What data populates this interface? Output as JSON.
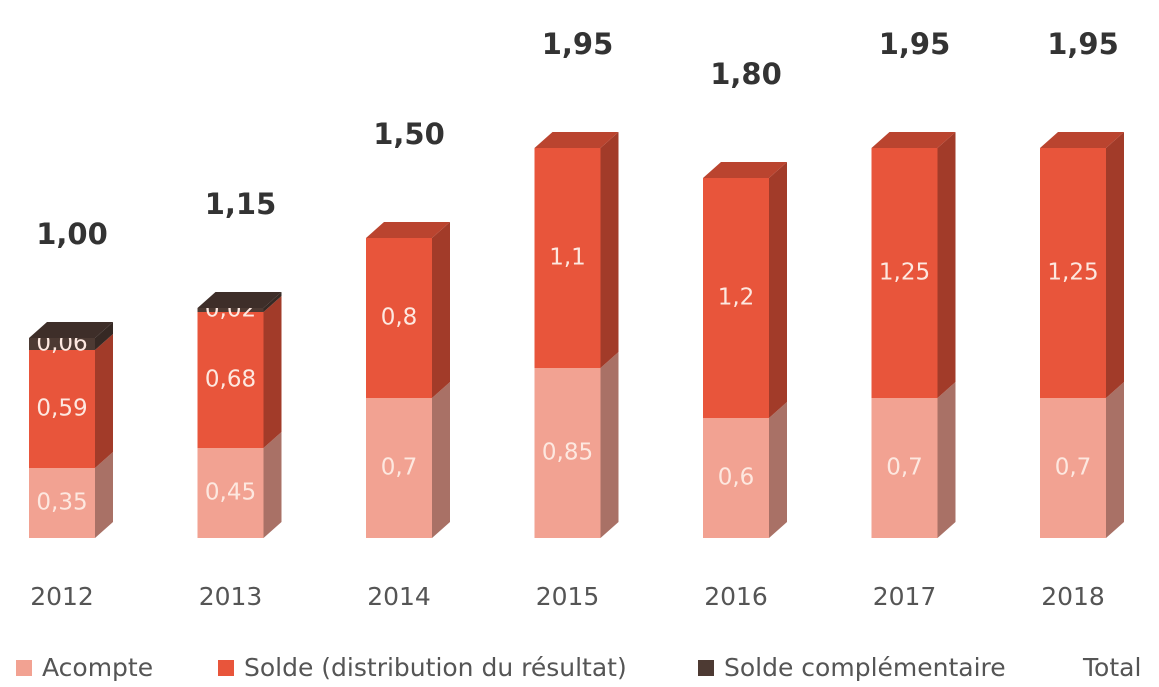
{
  "chart_data": {
    "type": "bar3d-stacked",
    "categories": [
      "2012",
      "2013",
      "2014",
      "2015",
      "2016",
      "2017",
      "2018"
    ],
    "series": [
      {
        "name": "Acompte",
        "color": "#f2a292",
        "values": [
          0.35,
          0.45,
          0.7,
          0.85,
          0.6,
          0.7,
          0.7
        ],
        "value_labels": [
          "0,35",
          "0,45",
          "0,7",
          "0,85",
          "0,6",
          "0,7",
          "0,7"
        ]
      },
      {
        "name": "Solde (distribution du résultat)",
        "color": "#e8553b",
        "values": [
          0.59,
          0.68,
          0.8,
          1.1,
          1.2,
          1.25,
          1.25
        ],
        "value_labels": [
          "0,59",
          "0,68",
          "0,8",
          "1,1",
          "1,2",
          "1,25",
          "1,25"
        ]
      },
      {
        "name": "Solde complémentaire",
        "color": "#4d3a33",
        "values": [
          0.06,
          0.02,
          null,
          null,
          null,
          null,
          null
        ],
        "value_labels": [
          "0,06",
          "0,02",
          null,
          null,
          null,
          null,
          null
        ]
      },
      {
        "name": "Total",
        "values": [
          1.0,
          1.15,
          1.5,
          1.95,
          1.8,
          1.95,
          1.95
        ],
        "value_labels": [
          "1,00",
          "1,15",
          "1,50",
          "1,95",
          "1,80",
          "1,95",
          "1,95"
        ]
      }
    ]
  }
}
